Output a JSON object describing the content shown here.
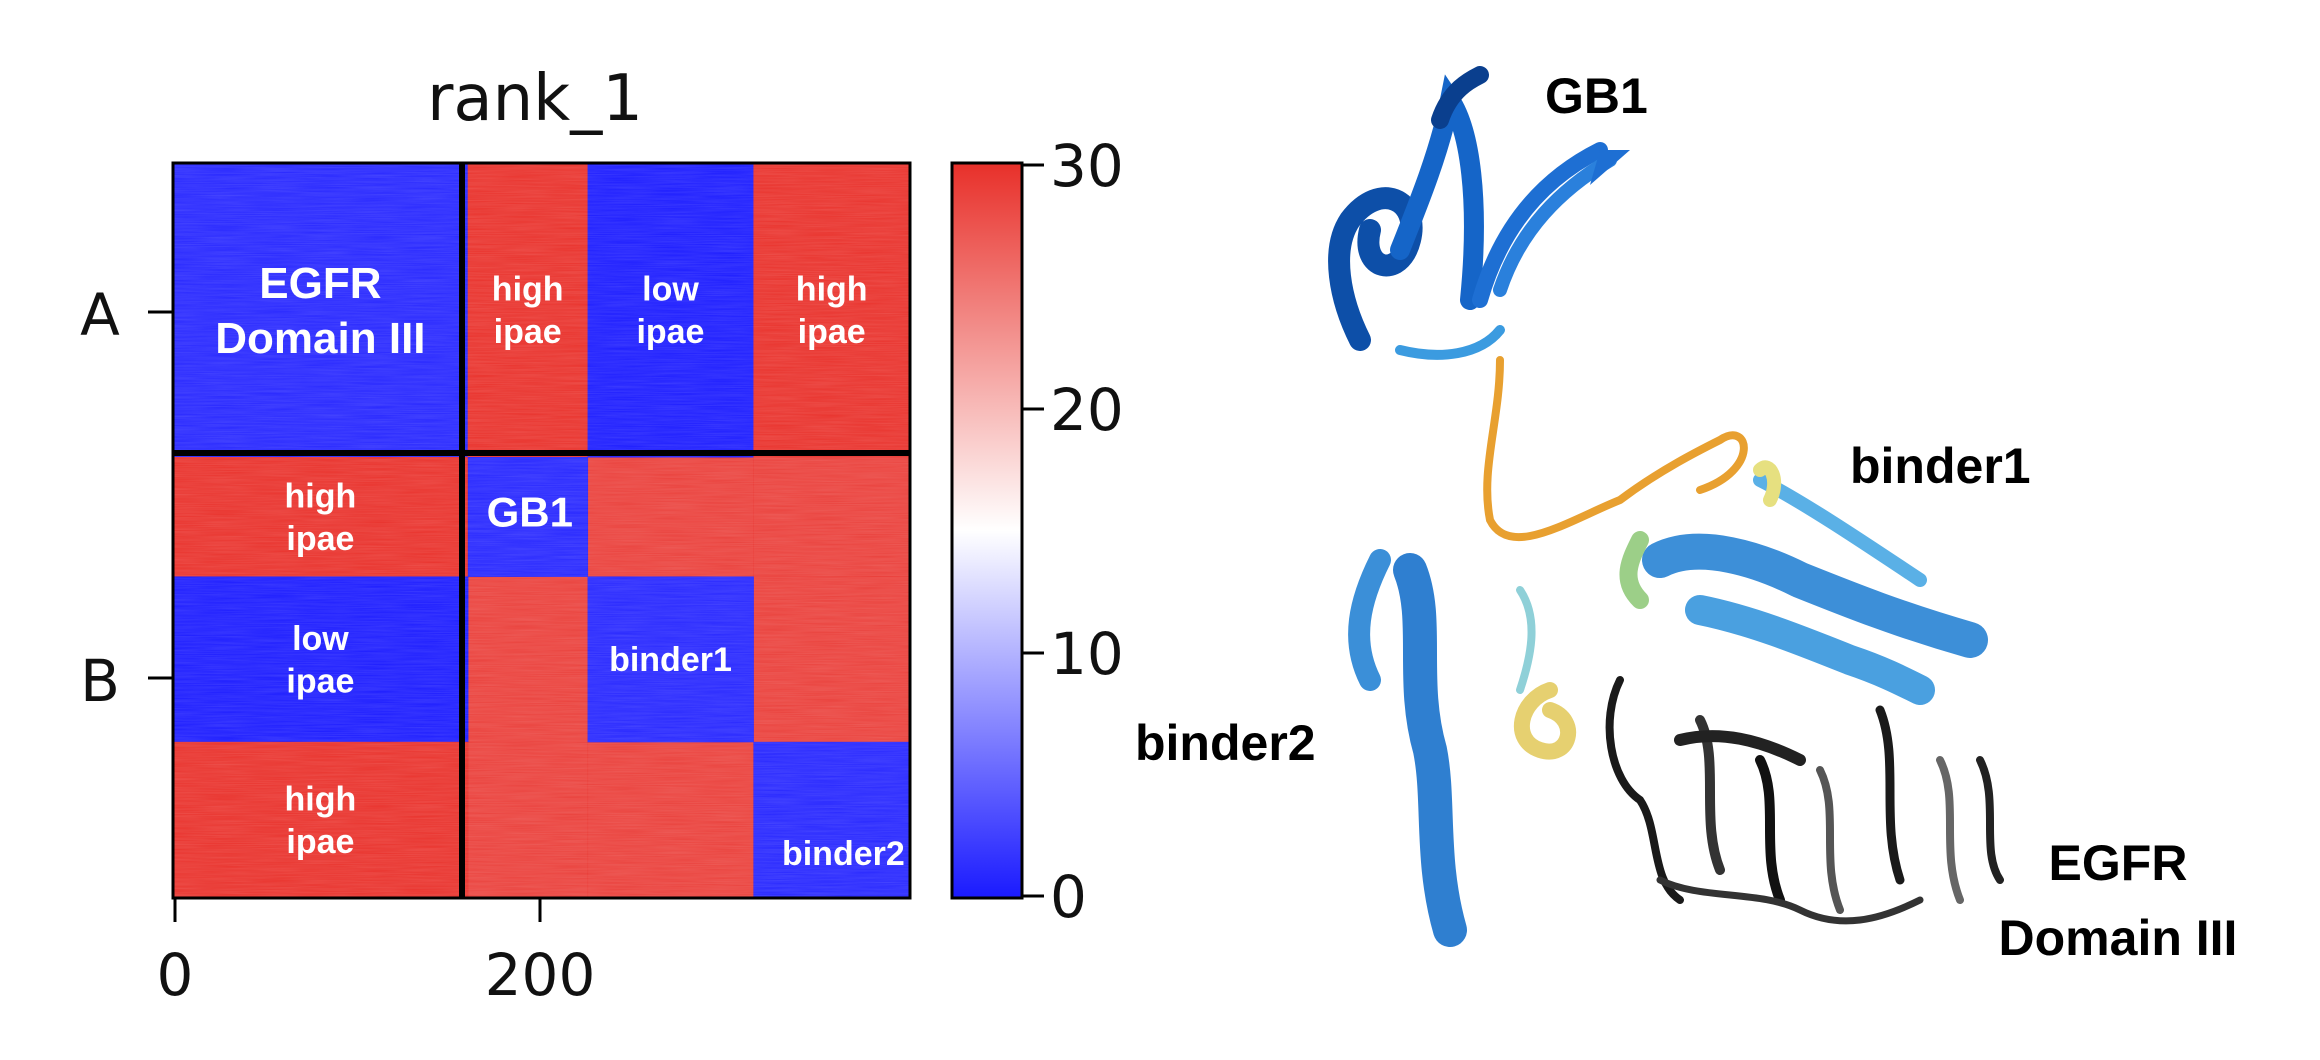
{
  "chart_data": [
    {
      "type": "heatmap",
      "title": "rank_1",
      "xlabel": "",
      "ylabel": "",
      "x_ticks": [
        "0",
        "200"
      ],
      "y_ticks": [
        "A",
        "B"
      ],
      "colorbar": {
        "ticks": [
          "0",
          "10",
          "20",
          "30"
        ],
        "range": [
          0,
          30
        ],
        "colors": [
          "#1a1aff",
          "#ffffff",
          "#e8302a"
        ]
      },
      "chains": [
        {
          "name": "A",
          "start": 0,
          "end": 160
        },
        {
          "name": "B",
          "start": 160,
          "end": 400
        }
      ],
      "segments_B": [
        {
          "name": "GB1",
          "start": 160,
          "end": 225
        },
        {
          "name": "binder1",
          "start": 225,
          "end": 315
        },
        {
          "name": "binder2",
          "start": 315,
          "end": 400
        }
      ],
      "regions": [
        {
          "label": "EGFR Domain III",
          "x": [
            0,
            160
          ],
          "y": [
            0,
            160
          ],
          "ipae_level": "low"
        },
        {
          "label": "high ipae",
          "x": [
            160,
            225
          ],
          "y": [
            0,
            160
          ],
          "ipae_level": "high"
        },
        {
          "label": "low ipae",
          "x": [
            225,
            315
          ],
          "y": [
            0,
            160
          ],
          "ipae_level": "low"
        },
        {
          "label": "high ipae",
          "x": [
            315,
            400
          ],
          "y": [
            0,
            160
          ],
          "ipae_level": "high"
        },
        {
          "label": "high ipae",
          "x": [
            0,
            160
          ],
          "y": [
            160,
            225
          ],
          "ipae_level": "high"
        },
        {
          "label": "low ipae",
          "x": [
            0,
            160
          ],
          "y": [
            225,
            315
          ],
          "ipae_level": "low"
        },
        {
          "label": "high ipae",
          "x": [
            0,
            160
          ],
          "y": [
            315,
            400
          ],
          "ipae_level": "high"
        },
        {
          "label": "GB1",
          "x": [
            160,
            225
          ],
          "y": [
            160,
            225
          ],
          "ipae_level": "low"
        },
        {
          "label": "binder1",
          "x": [
            225,
            315
          ],
          "y": [
            225,
            315
          ],
          "ipae_level": "low"
        },
        {
          "label": "binder2",
          "x": [
            315,
            400
          ],
          "y": [
            315,
            400
          ],
          "ipae_level": "low"
        }
      ]
    }
  ],
  "structure": {
    "labels": {
      "gb1": "GB1",
      "binder1": "binder1",
      "binder2": "binder2",
      "egfr_line1": "EGFR",
      "egfr_line2": "Domain III"
    },
    "colors": {
      "gb1": "#1565c8",
      "binder1": "#3d8fd8",
      "binder2": "#2f7fd0",
      "linker": "#e8a030",
      "egfr": "#1a1a1a"
    }
  }
}
